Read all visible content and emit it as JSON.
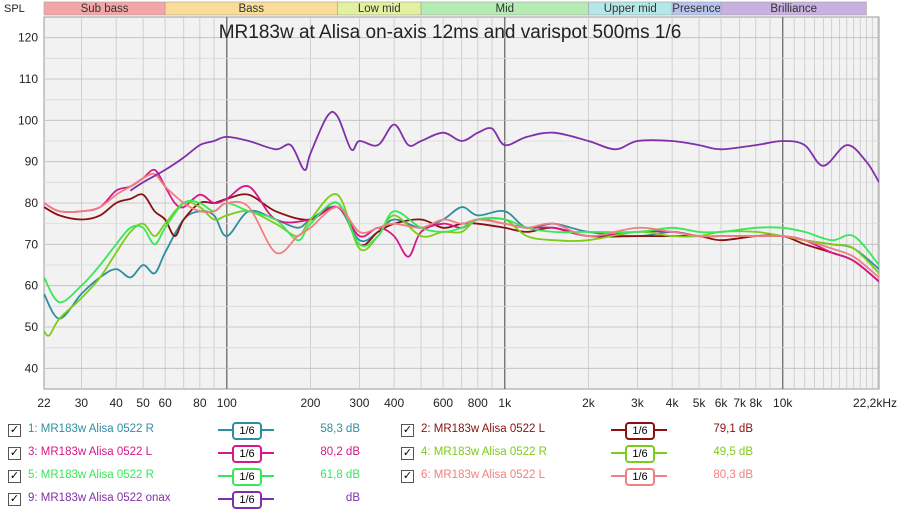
{
  "chart_data": {
    "type": "line",
    "title": "MR183w at Alisa on-axis 12ms and varispot 500ms 1/6",
    "ylabel": "SPL",
    "xscale": "log",
    "xlim": [
      22,
      22200
    ],
    "ylim": [
      35,
      125
    ],
    "grid": true,
    "yticks": [
      40,
      50,
      60,
      70,
      80,
      90,
      100,
      110,
      120
    ],
    "xtick_labels": [
      {
        "v": 22,
        "t": "22"
      },
      {
        "v": 30,
        "t": "30"
      },
      {
        "v": 40,
        "t": "40"
      },
      {
        "v": 50,
        "t": "50"
      },
      {
        "v": 60,
        "t": "60"
      },
      {
        "v": 80,
        "t": "80"
      },
      {
        "v": 100,
        "t": "100"
      },
      {
        "v": 200,
        "t": "200"
      },
      {
        "v": 300,
        "t": "300"
      },
      {
        "v": 400,
        "t": "400"
      },
      {
        "v": 600,
        "t": "600"
      },
      {
        "v": 800,
        "t": "800"
      },
      {
        "v": 1000,
        "t": "1k"
      },
      {
        "v": 2000,
        "t": "2k"
      },
      {
        "v": 3000,
        "t": "3k"
      },
      {
        "v": 4000,
        "t": "4k"
      },
      {
        "v": 5000,
        "t": "5k"
      },
      {
        "v": 6000,
        "t": "6k"
      },
      {
        "v": 7000,
        "t": "7k"
      },
      {
        "v": 8000,
        "t": "8k"
      },
      {
        "v": 10000,
        "t": "10k"
      },
      {
        "v": 22200,
        "t": "22,2kHz"
      }
    ],
    "bands": [
      {
        "label": "Sub bass",
        "from": 22,
        "to": 60,
        "color": "#f4a6a6"
      },
      {
        "label": "Bass",
        "from": 60,
        "to": 250,
        "color": "#f8dc98"
      },
      {
        "label": "Low mid",
        "from": 250,
        "to": 500,
        "color": "#e2f0a0"
      },
      {
        "label": "Mid",
        "from": 500,
        "to": 2000,
        "color": "#b4ecb4"
      },
      {
        "label": "Upper mid",
        "from": 2000,
        "to": 4000,
        "color": "#b4e8e8"
      },
      {
        "label": "Presence",
        "from": 4000,
        "to": 6000,
        "color": "#b8c4f0"
      },
      {
        "label": "Brilliance",
        "from": 6000,
        "to": 20000,
        "color": "#c8b0e0"
      }
    ],
    "series": [
      {
        "id": 1,
        "name": "1: MR183w Alisa 0522 R",
        "smoothing": "1/6",
        "db": "58,3 dB",
        "color": "#2f8fa0",
        "points": [
          [
            22,
            58
          ],
          [
            25,
            52
          ],
          [
            30,
            58
          ],
          [
            35,
            62
          ],
          [
            40,
            64
          ],
          [
            45,
            62
          ],
          [
            50,
            65
          ],
          [
            55,
            63
          ],
          [
            60,
            68
          ],
          [
            70,
            76
          ],
          [
            80,
            78
          ],
          [
            90,
            77
          ],
          [
            100,
            72
          ],
          [
            120,
            78
          ],
          [
            150,
            76
          ],
          [
            180,
            74
          ],
          [
            200,
            76
          ],
          [
            250,
            79
          ],
          [
            300,
            71
          ],
          [
            350,
            73
          ],
          [
            400,
            76
          ],
          [
            500,
            74
          ],
          [
            600,
            76
          ],
          [
            700,
            79
          ],
          [
            800,
            77
          ],
          [
            1000,
            78
          ],
          [
            1200,
            74
          ],
          [
            1500,
            75
          ],
          [
            2000,
            73
          ],
          [
            3000,
            72
          ],
          [
            4000,
            73
          ],
          [
            5000,
            72
          ],
          [
            6000,
            72
          ],
          [
            8000,
            72
          ],
          [
            10000,
            72
          ],
          [
            12000,
            71
          ],
          [
            15000,
            70
          ],
          [
            18000,
            69
          ],
          [
            22200,
            64
          ]
        ]
      },
      {
        "id": 2,
        "name": "2: MR183w Alisa 0522 L",
        "smoothing": "1/6",
        "db": "79,1 dB",
        "color": "#8b1010",
        "points": [
          [
            22,
            79
          ],
          [
            25,
            77
          ],
          [
            30,
            76
          ],
          [
            35,
            77
          ],
          [
            40,
            80
          ],
          [
            45,
            81
          ],
          [
            50,
            82
          ],
          [
            55,
            78
          ],
          [
            60,
            76
          ],
          [
            65,
            72
          ],
          [
            70,
            76
          ],
          [
            80,
            80
          ],
          [
            90,
            80
          ],
          [
            100,
            81
          ],
          [
            120,
            82
          ],
          [
            150,
            78
          ],
          [
            200,
            76
          ],
          [
            250,
            80
          ],
          [
            300,
            70
          ],
          [
            350,
            73
          ],
          [
            400,
            75
          ],
          [
            500,
            76
          ],
          [
            600,
            74
          ],
          [
            700,
            75
          ],
          [
            800,
            75
          ],
          [
            1000,
            74
          ],
          [
            1200,
            73
          ],
          [
            1500,
            74
          ],
          [
            2000,
            72
          ],
          [
            3000,
            72
          ],
          [
            4000,
            72
          ],
          [
            5000,
            72
          ],
          [
            6000,
            71
          ],
          [
            8000,
            72
          ],
          [
            10000,
            72
          ],
          [
            12000,
            70
          ],
          [
            15000,
            68
          ],
          [
            18000,
            66
          ],
          [
            22200,
            61
          ]
        ]
      },
      {
        "id": 3,
        "name": "3: MR183w Alisa 0522  L",
        "smoothing": "1/6",
        "db": "80,2 dB",
        "color": "#d6188a",
        "points": [
          [
            22,
            80
          ],
          [
            25,
            78
          ],
          [
            30,
            78
          ],
          [
            35,
            79
          ],
          [
            40,
            83
          ],
          [
            45,
            84
          ],
          [
            50,
            86
          ],
          [
            55,
            88
          ],
          [
            60,
            84
          ],
          [
            65,
            80
          ],
          [
            70,
            79
          ],
          [
            80,
            82
          ],
          [
            90,
            80
          ],
          [
            100,
            81
          ],
          [
            120,
            84
          ],
          [
            150,
            76
          ],
          [
            200,
            76
          ],
          [
            250,
            79
          ],
          [
            300,
            72
          ],
          [
            350,
            74
          ],
          [
            400,
            72
          ],
          [
            450,
            67
          ],
          [
            500,
            73
          ],
          [
            600,
            75
          ],
          [
            700,
            74
          ],
          [
            800,
            76
          ],
          [
            1000,
            75
          ],
          [
            1200,
            74
          ],
          [
            1500,
            74
          ],
          [
            2000,
            72
          ],
          [
            3000,
            73
          ],
          [
            4000,
            73
          ],
          [
            5000,
            72
          ],
          [
            6000,
            72
          ],
          [
            8000,
            72
          ],
          [
            10000,
            72
          ],
          [
            12000,
            71
          ],
          [
            15000,
            68
          ],
          [
            18000,
            66
          ],
          [
            22200,
            61
          ]
        ]
      },
      {
        "id": 4,
        "name": "4: MR183w Alisa 0522 R",
        "smoothing": "1/6",
        "db": "49,5 dB",
        "color": "#7ccc1a",
        "points": [
          [
            22,
            49
          ],
          [
            23,
            48
          ],
          [
            25,
            52
          ],
          [
            30,
            57
          ],
          [
            35,
            62
          ],
          [
            40,
            68
          ],
          [
            45,
            73
          ],
          [
            50,
            75
          ],
          [
            55,
            72
          ],
          [
            60,
            75
          ],
          [
            70,
            80
          ],
          [
            80,
            79
          ],
          [
            90,
            76
          ],
          [
            100,
            77
          ],
          [
            120,
            78
          ],
          [
            150,
            75
          ],
          [
            180,
            72
          ],
          [
            200,
            76
          ],
          [
            250,
            82
          ],
          [
            300,
            69
          ],
          [
            350,
            72
          ],
          [
            400,
            77
          ],
          [
            500,
            72
          ],
          [
            600,
            73
          ],
          [
            700,
            73
          ],
          [
            800,
            76
          ],
          [
            1000,
            76
          ],
          [
            1200,
            72
          ],
          [
            1500,
            71
          ],
          [
            2000,
            71
          ],
          [
            3000,
            73
          ],
          [
            4000,
            72
          ],
          [
            5000,
            72
          ],
          [
            6000,
            73
          ],
          [
            8000,
            73
          ],
          [
            10000,
            72
          ],
          [
            12000,
            71
          ],
          [
            15000,
            70
          ],
          [
            18000,
            69
          ],
          [
            22200,
            63
          ]
        ]
      },
      {
        "id": 5,
        "name": "5: MR183w Alisa 0522 R",
        "smoothing": "1/6",
        "db": "61,8 dB",
        "color": "#38e858",
        "points": [
          [
            22,
            62
          ],
          [
            25,
            56
          ],
          [
            30,
            60
          ],
          [
            35,
            65
          ],
          [
            40,
            70
          ],
          [
            45,
            74
          ],
          [
            50,
            74
          ],
          [
            55,
            70
          ],
          [
            60,
            74
          ],
          [
            70,
            80
          ],
          [
            80,
            80
          ],
          [
            90,
            78
          ],
          [
            100,
            80
          ],
          [
            120,
            78
          ],
          [
            150,
            76
          ],
          [
            180,
            71
          ],
          [
            200,
            75
          ],
          [
            250,
            80
          ],
          [
            300,
            70
          ],
          [
            350,
            72
          ],
          [
            400,
            78
          ],
          [
            500,
            74
          ],
          [
            600,
            73
          ],
          [
            700,
            74
          ],
          [
            800,
            76
          ],
          [
            1000,
            76
          ],
          [
            1200,
            74
          ],
          [
            1500,
            73
          ],
          [
            2000,
            73
          ],
          [
            3000,
            73
          ],
          [
            4000,
            74
          ],
          [
            5000,
            73
          ],
          [
            6000,
            73
          ],
          [
            8000,
            74
          ],
          [
            10000,
            74
          ],
          [
            12000,
            73
          ],
          [
            15000,
            71
          ],
          [
            18000,
            72
          ],
          [
            22200,
            65
          ]
        ]
      },
      {
        "id": 6,
        "name": "6: MR183w Alisa 0522 L",
        "smoothing": "1/6",
        "db": "80,3 dB",
        "color": "#f08080",
        "points": [
          [
            22,
            80
          ],
          [
            25,
            78
          ],
          [
            30,
            78
          ],
          [
            35,
            79
          ],
          [
            40,
            82
          ],
          [
            45,
            84
          ],
          [
            50,
            86
          ],
          [
            55,
            87
          ],
          [
            60,
            84
          ],
          [
            70,
            80
          ],
          [
            80,
            78
          ],
          [
            90,
            78
          ],
          [
            100,
            80
          ],
          [
            120,
            79
          ],
          [
            150,
            68
          ],
          [
            180,
            72
          ],
          [
            200,
            74
          ],
          [
            250,
            79
          ],
          [
            300,
            73
          ],
          [
            350,
            74
          ],
          [
            400,
            75
          ],
          [
            500,
            74
          ],
          [
            600,
            76
          ],
          [
            700,
            75
          ],
          [
            800,
            76
          ],
          [
            1000,
            75
          ],
          [
            1200,
            74
          ],
          [
            1500,
            75
          ],
          [
            2000,
            72
          ],
          [
            3000,
            74
          ],
          [
            4000,
            73
          ],
          [
            5000,
            72
          ],
          [
            6000,
            72
          ],
          [
            8000,
            72
          ],
          [
            10000,
            72
          ],
          [
            12000,
            71
          ],
          [
            15000,
            69
          ],
          [
            18000,
            67
          ],
          [
            22200,
            62
          ]
        ]
      },
      {
        "id": 9,
        "name": "9: MR183w Alisa 0522 onax",
        "smoothing": "1/6",
        "db": "dB",
        "color": "#8030a8",
        "points": [
          [
            45,
            83
          ],
          [
            50,
            85
          ],
          [
            60,
            88
          ],
          [
            70,
            91
          ],
          [
            80,
            94
          ],
          [
            90,
            95
          ],
          [
            100,
            96
          ],
          [
            120,
            95
          ],
          [
            150,
            93
          ],
          [
            170,
            94
          ],
          [
            190,
            88
          ],
          [
            200,
            92
          ],
          [
            230,
            101
          ],
          [
            250,
            101
          ],
          [
            280,
            93
          ],
          [
            300,
            95
          ],
          [
            350,
            94
          ],
          [
            400,
            99
          ],
          [
            450,
            94
          ],
          [
            500,
            95
          ],
          [
            600,
            97
          ],
          [
            700,
            95
          ],
          [
            800,
            97
          ],
          [
            900,
            98
          ],
          [
            1000,
            94
          ],
          [
            1200,
            96
          ],
          [
            1500,
            97
          ],
          [
            2000,
            95
          ],
          [
            2500,
            93
          ],
          [
            3000,
            95
          ],
          [
            4000,
            95
          ],
          [
            5000,
            94
          ],
          [
            6000,
            93
          ],
          [
            8000,
            94
          ],
          [
            10000,
            95
          ],
          [
            12000,
            94
          ],
          [
            14000,
            89
          ],
          [
            17000,
            94
          ],
          [
            20000,
            90
          ],
          [
            22200,
            85
          ]
        ]
      }
    ]
  },
  "ui": {
    "chk_mark": "✓"
  }
}
